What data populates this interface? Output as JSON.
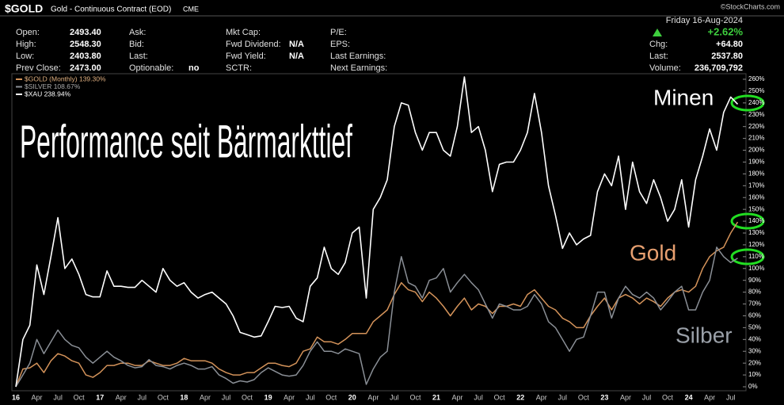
{
  "header": {
    "symbol": "$GOLD",
    "description": "Gold - Continuous Contract (EOD)",
    "exchange": "CME",
    "copyright": "©StockCharts.com",
    "date": "Friday 16-Aug-2024",
    "change_pct": "+2.62%",
    "columns": [
      [
        [
          "Open:",
          "2493.40"
        ],
        [
          "High:",
          "2548.30"
        ],
        [
          "Low:",
          "2403.80"
        ],
        [
          "Prev Close:",
          "2473.00"
        ]
      ],
      [
        [
          "Ask:"
        ],
        [
          "Bid:"
        ],
        [
          "Last:"
        ],
        [
          "Optionable:",
          "no"
        ]
      ],
      [
        [
          "Mkt Cap:"
        ],
        [
          "Fwd Dividend:",
          "N/A"
        ],
        [
          "Fwd Yield:",
          "N/A"
        ],
        [
          "SCTR:"
        ]
      ],
      [
        [
          "P/E:"
        ],
        [
          "EPS:"
        ],
        [
          "Last Earnings:"
        ],
        [
          "Next Earnings:"
        ]
      ],
      [
        [
          "Chg:",
          "+64.80"
        ],
        [
          "Last:",
          "2537.80"
        ],
        [
          "Volume:",
          "236,709,792"
        ]
      ]
    ]
  },
  "chart_data": {
    "type": "line",
    "annotations": [
      "Performance seit Bärmarkttief",
      "Minen",
      "Gold",
      "Silber"
    ],
    "categories": [
      "16",
      null,
      null,
      "Apr",
      null,
      null,
      "Jul",
      null,
      null,
      "Oct",
      null,
      null,
      "17",
      null,
      null,
      "Apr",
      null,
      null,
      "Jul",
      null,
      null,
      "Oct",
      null,
      null,
      "18",
      null,
      null,
      "Apr",
      null,
      null,
      "Jul",
      null,
      null,
      "Oct",
      null,
      null,
      "19",
      null,
      null,
      "Apr",
      null,
      null,
      "Jul",
      null,
      null,
      "Oct",
      null,
      null,
      "20",
      null,
      null,
      "Apr",
      null,
      null,
      "Jul",
      null,
      null,
      "Oct",
      null,
      null,
      "21",
      null,
      null,
      "Apr",
      null,
      null,
      "Jul",
      null,
      null,
      "Oct",
      null,
      null,
      "22",
      null,
      null,
      "Apr",
      null,
      null,
      "Jul",
      null,
      null,
      "Oct",
      null,
      null,
      "23",
      null,
      null,
      "Apr",
      null,
      null,
      "Jul",
      null,
      null,
      "Oct",
      null,
      null,
      "24",
      null,
      null,
      "Apr",
      null,
      null,
      "Jul",
      null
    ],
    "series": [
      {
        "name": "$GOLD (Monthly) 139.30%",
        "color": "#d4935a",
        "values": [
          0,
          15,
          16,
          20,
          12,
          22,
          28,
          26,
          22,
          20,
          10,
          8,
          12,
          18,
          18,
          20,
          20,
          18,
          18,
          22,
          20,
          18,
          18,
          20,
          24,
          22,
          22,
          22,
          20,
          15,
          12,
          10,
          10,
          12,
          12,
          16,
          20,
          20,
          18,
          17,
          20,
          30,
          32,
          42,
          38,
          38,
          36,
          40,
          45,
          45,
          45,
          55,
          60,
          65,
          78,
          88,
          82,
          80,
          72,
          80,
          75,
          68,
          60,
          68,
          75,
          65,
          70,
          68,
          62,
          68,
          68,
          70,
          68,
          78,
          82,
          75,
          68,
          65,
          58,
          55,
          50,
          50,
          60,
          68,
          75,
          65,
          75,
          78,
          75,
          70,
          75,
          72,
          68,
          75,
          80,
          82,
          80,
          85,
          100,
          110,
          115,
          118,
          130,
          139.3
        ]
      },
      {
        "name": "$SILVER 108.67%",
        "color": "#8a8f96",
        "values": [
          0,
          10,
          20,
          40,
          28,
          38,
          48,
          40,
          35,
          33,
          25,
          20,
          25,
          30,
          25,
          22,
          18,
          16,
          17,
          23,
          18,
          17,
          15,
          18,
          20,
          18,
          15,
          15,
          17,
          10,
          7,
          3,
          5,
          4,
          6,
          12,
          16,
          13,
          10,
          9,
          10,
          18,
          30,
          38,
          30,
          30,
          28,
          32,
          30,
          28,
          2,
          15,
          25,
          30,
          80,
          110,
          88,
          85,
          75,
          90,
          92,
          100,
          80,
          88,
          95,
          88,
          82,
          70,
          58,
          70,
          68,
          65,
          65,
          68,
          78,
          70,
          55,
          50,
          40,
          30,
          40,
          42,
          60,
          80,
          80,
          58,
          75,
          85,
          78,
          75,
          80,
          75,
          65,
          72,
          80,
          85,
          65,
          65,
          80,
          90,
          118,
          110,
          105,
          108.67
        ]
      },
      {
        "name": "$XAU 238.94%",
        "color": "#ffffff",
        "values": [
          0,
          40,
          52,
          103,
          78,
          110,
          143,
          100,
          108,
          95,
          78,
          76,
          76,
          98,
          85,
          85,
          84,
          84,
          90,
          85,
          80,
          100,
          90,
          85,
          88,
          80,
          75,
          78,
          80,
          75,
          70,
          60,
          46,
          44,
          42,
          43,
          55,
          68,
          67,
          68,
          58,
          55,
          85,
          92,
          118,
          100,
          95,
          105,
          130,
          135,
          75,
          150,
          160,
          175,
          220,
          240,
          238,
          215,
          200,
          215,
          215,
          200,
          195,
          220,
          262,
          215,
          220,
          200,
          165,
          188,
          190,
          190,
          200,
          215,
          248,
          215,
          170,
          145,
          117,
          130,
          120,
          125,
          128,
          165,
          180,
          170,
          195,
          150,
          190,
          165,
          155,
          175,
          160,
          140,
          150,
          175,
          135,
          175,
          195,
          218,
          200,
          232,
          245,
          238.94
        ]
      }
    ],
    "ylim": [
      0,
      260
    ],
    "yticks": [
      {
        "value": 0,
        "label": "0%"
      },
      {
        "value": 10,
        "label": "10%"
      },
      {
        "value": 20,
        "label": "20%"
      },
      {
        "value": 30,
        "label": "30%"
      },
      {
        "value": 40,
        "label": "40%"
      },
      {
        "value": 50,
        "label": "50%"
      },
      {
        "value": 60,
        "label": "60%"
      },
      {
        "value": 70,
        "label": "70%"
      },
      {
        "value": 80,
        "label": "80%"
      },
      {
        "value": 90,
        "label": "90%"
      },
      {
        "value": 100,
        "label": "100%"
      },
      {
        "value": 110,
        "label": "110%"
      },
      {
        "value": 120,
        "label": "120%"
      },
      {
        "value": 130,
        "label": "130%"
      },
      {
        "value": 140,
        "label": "140%"
      },
      {
        "value": 150,
        "label": "150%"
      },
      {
        "value": 160,
        "label": "160%"
      },
      {
        "value": 170,
        "label": "170%"
      },
      {
        "value": 180,
        "label": "180%"
      },
      {
        "value": 190,
        "label": "190%"
      },
      {
        "value": 200,
        "label": "200%"
      },
      {
        "value": 210,
        "label": "210%"
      },
      {
        "value": 220,
        "label": "220%"
      },
      {
        "value": 230,
        "label": "230%"
      },
      {
        "value": 240,
        "label": "240%"
      },
      {
        "value": 250,
        "label": "250%"
      },
      {
        "value": 260,
        "label": "260%"
      }
    ],
    "grid": false
  }
}
